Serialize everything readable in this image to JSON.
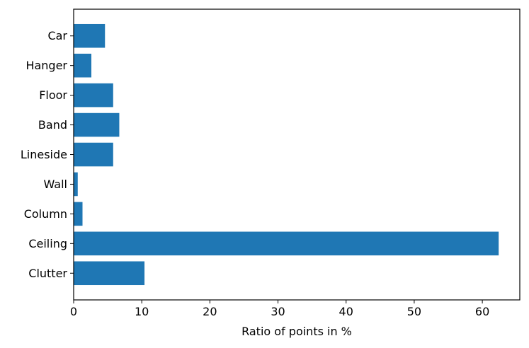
{
  "chart_data": {
    "type": "bar",
    "orientation": "horizontal",
    "title": "",
    "xlabel": "Ratio of points in %",
    "ylabel": "",
    "categories": [
      "Clutter",
      "Ceiling",
      "Column",
      "Wall",
      "Lineside",
      "Band",
      "Floor",
      "Hanger",
      "Car"
    ],
    "values": [
      10.4,
      62.4,
      1.3,
      0.6,
      5.8,
      6.7,
      5.8,
      2.6,
      4.6
    ],
    "xlim": [
      0,
      65.5
    ],
    "xticks": [
      0,
      10,
      20,
      30,
      40,
      50,
      60
    ],
    "grid": false,
    "legend": "none",
    "bar_color": "#1f77b4"
  }
}
